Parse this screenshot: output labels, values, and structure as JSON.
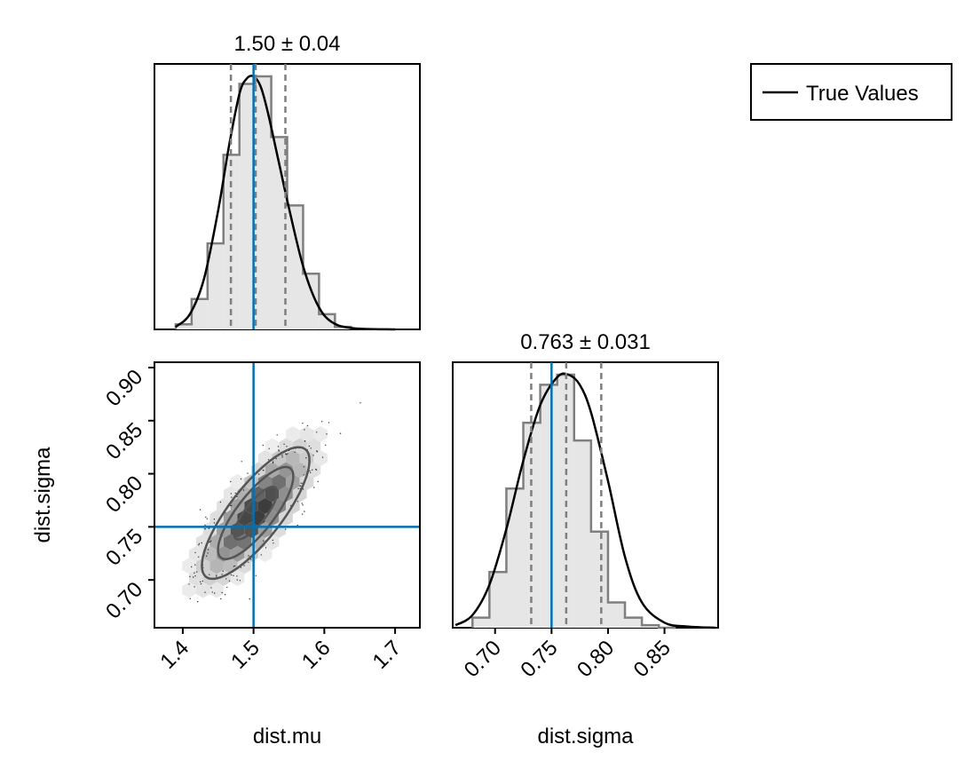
{
  "chart_data": {
    "type": "corner",
    "legend": {
      "label": "True Values",
      "placement": "top-right"
    },
    "truths": {
      "dist.mu": 1.5,
      "dist.sigma": 0.75
    },
    "colors": {
      "truth_line": "#0072b2",
      "hist_fill": "#e6e6e6",
      "hist_edge": "#7f7f7f",
      "kde_line": "#000000",
      "quantile_line": "#7f7f7f"
    },
    "panels": [
      {
        "id": "mu-marginal",
        "type": "histogram",
        "variable": "dist.mu",
        "title": "1.50 ± 0.04",
        "xlim": [
          1.36,
          1.735
        ],
        "bin_edges": [
          1.39,
          1.4125,
          1.435,
          1.4575,
          1.48,
          1.5025,
          1.525,
          1.5475,
          1.57,
          1.5925,
          1.615,
          1.6375
        ],
        "counts": [
          0.02,
          0.12,
          0.34,
          0.69,
          0.97,
          1.0,
          0.76,
          0.49,
          0.22,
          0.06,
          0.01
        ],
        "kde_x": [
          1.39,
          1.41,
          1.43,
          1.45,
          1.465,
          1.48,
          1.49,
          1.5,
          1.51,
          1.52,
          1.535,
          1.55,
          1.57,
          1.59,
          1.61,
          1.64,
          1.7
        ],
        "kde_y": [
          0.01,
          0.06,
          0.2,
          0.47,
          0.72,
          0.93,
          0.99,
          1.0,
          0.96,
          0.86,
          0.67,
          0.48,
          0.25,
          0.1,
          0.03,
          0.005,
          0.0
        ],
        "quantiles": [
          1.468,
          1.503,
          1.545
        ],
        "truth": 1.5
      },
      {
        "id": "sigma-marginal",
        "type": "histogram",
        "variable": "dist.sigma",
        "title": "0.763 ± 0.031",
        "xlim": [
          0.6625,
          0.8975
        ],
        "xticks": [
          0.7,
          0.75,
          0.8,
          0.85
        ],
        "xticklabels": [
          "0.70",
          "0.75",
          "0.80",
          "0.85"
        ],
        "xlabel": "dist.sigma",
        "bin_edges": [
          0.68,
          0.695,
          0.71,
          0.725,
          0.74,
          0.755,
          0.77,
          0.785,
          0.8,
          0.815,
          0.83,
          0.845,
          0.86
        ],
        "counts": [
          0.04,
          0.22,
          0.55,
          0.81,
          0.96,
          1.0,
          0.74,
          0.38,
          0.1,
          0.04,
          0.01,
          0.0
        ],
        "kde_x": [
          0.665,
          0.68,
          0.695,
          0.71,
          0.725,
          0.74,
          0.755,
          0.765,
          0.775,
          0.785,
          0.8,
          0.815,
          0.83,
          0.85,
          0.87,
          0.895
        ],
        "kde_y": [
          0.01,
          0.05,
          0.17,
          0.39,
          0.66,
          0.88,
          0.99,
          1.0,
          0.96,
          0.85,
          0.58,
          0.28,
          0.1,
          0.02,
          0.005,
          0.0
        ],
        "quantiles": [
          0.732,
          0.763,
          0.794
        ],
        "truth": 0.75
      },
      {
        "id": "mu-sigma-joint",
        "type": "hexbin-contour",
        "x_variable": "dist.mu",
        "y_variable": "dist.sigma",
        "xlim": [
          1.36,
          1.735
        ],
        "ylim": [
          0.655,
          0.905
        ],
        "xticks": [
          1.4,
          1.5,
          1.6,
          1.7
        ],
        "xticklabels": [
          "1.4",
          "1.5",
          "1.6",
          "1.7"
        ],
        "yticks": [
          0.7,
          0.75,
          0.8,
          0.85,
          0.9
        ],
        "yticklabels": [
          "0.70",
          "0.75",
          "0.80",
          "0.85",
          "0.90"
        ],
        "xlabel": "dist.mu",
        "ylabel": "dist.sigma",
        "correlation": 0.8,
        "mean": [
          1.503,
          0.763
        ],
        "std": [
          0.038,
          0.031
        ],
        "contour_levels_sigma": [
          0.8,
          1.4,
          2.0
        ],
        "truth": [
          1.5,
          0.75
        ]
      }
    ]
  }
}
